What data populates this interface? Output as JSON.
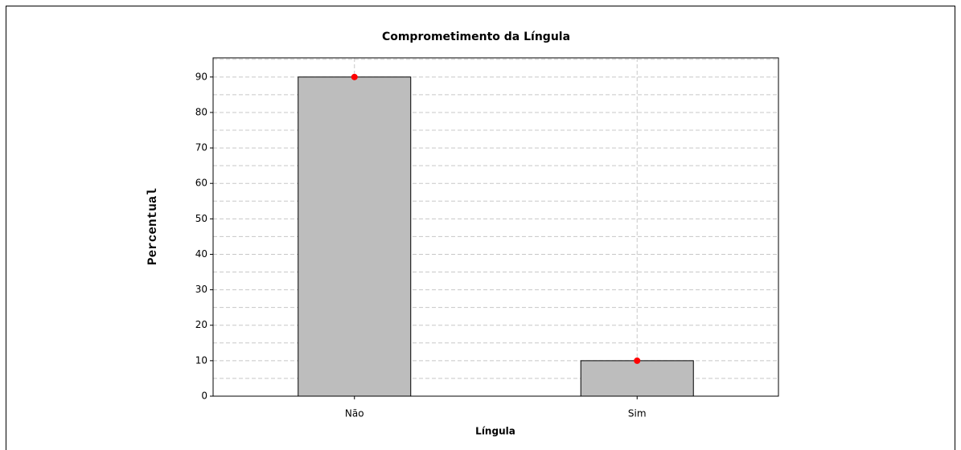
{
  "chart_data": {
    "type": "bar",
    "title": "Comprometimento da Língula",
    "x_label": "Língula",
    "y_label": "Percentual",
    "categories": [
      "Não",
      "Sim"
    ],
    "values": [
      90,
      10
    ],
    "color": "#bdbdbd",
    "marker_color": "#ff0000",
    "ylim": [
      0,
      95.4
    ],
    "yticks": [
      0,
      10,
      20,
      30,
      40,
      50,
      60,
      70,
      80,
      90
    ],
    "minor_yticks": [
      5,
      15,
      25,
      35,
      45,
      55,
      65,
      75,
      85,
      95
    ],
    "grid": true
  }
}
